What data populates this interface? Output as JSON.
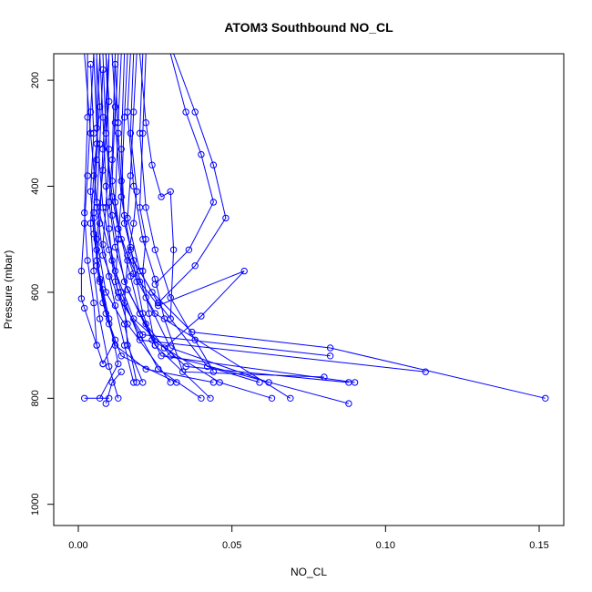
{
  "chart_data": {
    "type": "line",
    "title": "ATOM3 Southbound NO_CL",
    "xlabel": "NO_CL",
    "ylabel": "Pressure (mbar)",
    "xlim": [
      -0.008,
      0.158
    ],
    "ylim": [
      1040,
      150
    ],
    "y_reversed": true,
    "grid": false,
    "x_ticks": [
      0.0,
      0.05,
      0.1,
      0.15
    ],
    "x_tick_labels": [
      "0.00",
      "0.05",
      "0.10",
      "0.15"
    ],
    "y_ticks": [
      200,
      400,
      600,
      800,
      1000
    ],
    "y_tick_labels": [
      "200",
      "400",
      "600",
      "800",
      "1000"
    ],
    "series_color": "#0000ff",
    "series": [
      {
        "points": [
          [
            0.002,
            150
          ],
          [
            0.004,
            300
          ],
          [
            0.006,
            430
          ],
          [
            0.01,
            520
          ],
          [
            0.013,
            600
          ],
          [
            0.02,
            680
          ],
          [
            0.026,
            745
          ],
          [
            0.04,
            800
          ]
        ]
      },
      {
        "points": [
          [
            0.005,
            150
          ],
          [
            0.006,
            290
          ],
          [
            0.008,
            440
          ],
          [
            0.012,
            560
          ],
          [
            0.018,
            650
          ],
          [
            0.035,
            740
          ],
          [
            0.088,
            770
          ]
        ]
      },
      {
        "points": [
          [
            0.008,
            150
          ],
          [
            0.009,
            300
          ],
          [
            0.011,
            455
          ],
          [
            0.015,
            580
          ],
          [
            0.024,
            690
          ],
          [
            0.046,
            770
          ],
          [
            0.063,
            800
          ]
        ]
      },
      {
        "points": [
          [
            0.01,
            150
          ],
          [
            0.008,
            330
          ],
          [
            0.007,
            470
          ],
          [
            0.006,
            550
          ],
          [
            0.008,
            620
          ],
          [
            0.012,
            700
          ],
          [
            0.022,
            745
          ],
          [
            0.044,
            770
          ]
        ]
      },
      {
        "points": [
          [
            0.013,
            150
          ],
          [
            0.012,
            280
          ],
          [
            0.014,
            420
          ],
          [
            0.017,
            520
          ],
          [
            0.022,
            610
          ],
          [
            0.03,
            705
          ],
          [
            0.062,
            770
          ]
        ]
      },
      {
        "points": [
          [
            0.017,
            150
          ],
          [
            0.016,
            260
          ],
          [
            0.018,
            400
          ],
          [
            0.021,
            500
          ],
          [
            0.025,
            575
          ],
          [
            0.028,
            650
          ],
          [
            0.034,
            750
          ],
          [
            0.08,
            760
          ]
        ]
      },
      {
        "points": [
          [
            0.021,
            150
          ],
          [
            0.02,
            300
          ],
          [
            0.022,
            440
          ],
          [
            0.025,
            520
          ],
          [
            0.03,
            610
          ],
          [
            0.038,
            690
          ],
          [
            0.044,
            750
          ]
        ]
      },
      {
        "points": [
          [
            0.006,
            160
          ],
          [
            0.007,
            250
          ],
          [
            0.005,
            380
          ],
          [
            0.004,
            470
          ],
          [
            0.005,
            560
          ],
          [
            0.007,
            650
          ],
          [
            0.01,
            740
          ],
          [
            0.013,
            800
          ]
        ]
      },
      {
        "points": [
          [
            0.009,
            150
          ],
          [
            0.01,
            240
          ],
          [
            0.008,
            370
          ],
          [
            0.006,
            500
          ],
          [
            0.009,
            600
          ],
          [
            0.015,
            660
          ],
          [
            0.019,
            770
          ]
        ]
      },
      {
        "points": [
          [
            0.003,
            150
          ],
          [
            0.003,
            270
          ],
          [
            0.002,
            450
          ],
          [
            0.003,
            540
          ],
          [
            0.005,
            620
          ],
          [
            0.006,
            700
          ],
          [
            0.008,
            735
          ]
        ]
      },
      {
        "points": [
          [
            0.012,
            150
          ],
          [
            0.011,
            350
          ],
          [
            0.01,
            430
          ],
          [
            0.012,
            515
          ],
          [
            0.016,
            595
          ],
          [
            0.022,
            660
          ],
          [
            0.03,
            720
          ],
          [
            0.088,
            810
          ]
        ]
      },
      {
        "points": [
          [
            0.015,
            150
          ],
          [
            0.014,
            330
          ],
          [
            0.015,
            470
          ],
          [
            0.018,
            540
          ],
          [
            0.024,
            600
          ],
          [
            0.037,
            675
          ],
          [
            0.082,
            705
          ],
          [
            0.152,
            800
          ]
        ]
      },
      {
        "points": [
          [
            0.019,
            150
          ],
          [
            0.018,
            260
          ],
          [
            0.017,
            380
          ],
          [
            0.016,
            460
          ],
          [
            0.02,
            560
          ],
          [
            0.026,
            620
          ],
          [
            0.042,
            740
          ],
          [
            0.059,
            770
          ]
        ]
      },
      {
        "points": [
          [
            0.007,
            150
          ],
          [
            0.008,
            270
          ],
          [
            0.009,
            400
          ],
          [
            0.01,
            480
          ],
          [
            0.011,
            540
          ],
          [
            0.014,
            600
          ],
          [
            0.02,
            690
          ],
          [
            0.113,
            750
          ]
        ]
      },
      {
        "points": [
          [
            0.004,
            170
          ],
          [
            0.005,
            300
          ],
          [
            0.004,
            410
          ],
          [
            0.005,
            490
          ],
          [
            0.007,
            575
          ],
          [
            0.01,
            660
          ],
          [
            0.014,
            720
          ],
          [
            0.032,
            770
          ]
        ]
      },
      {
        "points": [
          [
            0.011,
            150
          ],
          [
            0.012,
            250
          ],
          [
            0.011,
            390
          ],
          [
            0.013,
            480
          ],
          [
            0.018,
            565
          ],
          [
            0.025,
            640
          ],
          [
            0.069,
            800
          ]
        ]
      },
      {
        "points": [
          [
            0.014,
            150
          ],
          [
            0.013,
            280
          ],
          [
            0.012,
            430
          ],
          [
            0.014,
            500
          ],
          [
            0.017,
            570
          ],
          [
            0.02,
            640
          ],
          [
            0.027,
            720
          ],
          [
            0.09,
            770
          ]
        ]
      },
      {
        "points": [
          [
            0.008,
            180
          ],
          [
            0.007,
            320
          ],
          [
            0.006,
            440
          ],
          [
            0.008,
            530
          ],
          [
            0.013,
            610
          ],
          [
            0.021,
            680
          ],
          [
            0.082,
            720
          ]
        ]
      },
      {
        "points": [
          [
            0.016,
            150
          ],
          [
            0.015,
            270
          ],
          [
            0.014,
            420
          ],
          [
            0.013,
            500
          ],
          [
            0.012,
            580
          ],
          [
            0.016,
            660
          ],
          [
            0.03,
            770
          ]
        ]
      },
      {
        "points": [
          [
            0.01,
            160
          ],
          [
            0.009,
            300
          ],
          [
            0.011,
            420
          ],
          [
            0.013,
            480
          ],
          [
            0.016,
            530
          ],
          [
            0.02,
            580
          ],
          [
            0.026,
            625
          ],
          [
            0.054,
            560
          ],
          [
            0.04,
            645
          ],
          [
            0.028,
            705
          ]
        ]
      },
      {
        "points": [
          [
            0.02,
            150
          ],
          [
            0.022,
            280
          ],
          [
            0.024,
            360
          ],
          [
            0.027,
            420
          ],
          [
            0.03,
            410
          ],
          [
            0.031,
            520
          ],
          [
            0.03,
            650
          ]
        ]
      },
      {
        "points": [
          [
            0.03,
            150
          ],
          [
            0.035,
            260
          ],
          [
            0.04,
            340
          ],
          [
            0.044,
            430
          ],
          [
            0.036,
            520
          ],
          [
            0.025,
            585
          ]
        ]
      },
      {
        "points": [
          [
            0.031,
            150
          ],
          [
            0.038,
            260
          ],
          [
            0.044,
            360
          ],
          [
            0.048,
            460
          ],
          [
            0.038,
            550
          ],
          [
            0.026,
            620
          ]
        ]
      },
      {
        "points": [
          [
            0.022,
            150
          ],
          [
            0.021,
            300
          ],
          [
            0.02,
            440
          ],
          [
            0.022,
            500
          ],
          [
            0.021,
            560
          ],
          [
            0.023,
            640
          ],
          [
            0.025,
            700
          ]
        ]
      },
      {
        "points": [
          [
            0.005,
            150
          ],
          [
            0.004,
            260
          ],
          [
            0.003,
            380
          ],
          [
            0.002,
            470
          ],
          [
            0.001,
            560
          ],
          [
            0.001,
            612
          ],
          [
            0.002,
            630
          ],
          [
            0.006,
            700
          ]
        ]
      },
      {
        "points": [
          [
            0.009,
            150
          ],
          [
            0.01,
            330
          ],
          [
            0.009,
            440
          ],
          [
            0.008,
            510
          ],
          [
            0.01,
            570
          ],
          [
            0.012,
            625
          ],
          [
            0.015,
            700
          ],
          [
            0.018,
            770
          ]
        ]
      },
      {
        "points": [
          [
            0.006,
            150
          ],
          [
            0.006,
            350
          ],
          [
            0.005,
            460
          ],
          [
            0.006,
            540
          ],
          [
            0.008,
            595
          ],
          [
            0.01,
            650
          ],
          [
            0.013,
            735
          ],
          [
            0.007,
            800
          ]
        ]
      },
      {
        "points": [
          [
            0.012,
            170
          ],
          [
            0.013,
            300
          ],
          [
            0.014,
            390
          ],
          [
            0.015,
            455
          ],
          [
            0.017,
            515
          ],
          [
            0.019,
            580
          ],
          [
            0.021,
            640
          ],
          [
            0.025,
            700
          ],
          [
            0.043,
            800
          ]
        ]
      },
      {
        "points": [
          [
            0.018,
            150
          ],
          [
            0.017,
            300
          ],
          [
            0.019,
            410
          ],
          [
            0.018,
            470
          ],
          [
            0.016,
            540
          ],
          [
            0.015,
            620
          ],
          [
            0.016,
            700
          ],
          [
            0.021,
            770
          ]
        ]
      },
      {
        "points": [
          [
            0.002,
            800
          ],
          [
            0.01,
            800
          ]
        ]
      },
      {
        "points": [
          [
            0.009,
            810
          ],
          [
            0.011,
            770
          ],
          [
            0.014,
            750
          ]
        ]
      },
      {
        "points": [
          [
            0.007,
            150
          ],
          [
            0.006,
            320
          ],
          [
            0.005,
            450
          ],
          [
            0.006,
            520
          ],
          [
            0.007,
            580
          ],
          [
            0.009,
            640
          ],
          [
            0.012,
            690
          ],
          [
            0.008,
            735
          ]
        ]
      }
    ]
  }
}
